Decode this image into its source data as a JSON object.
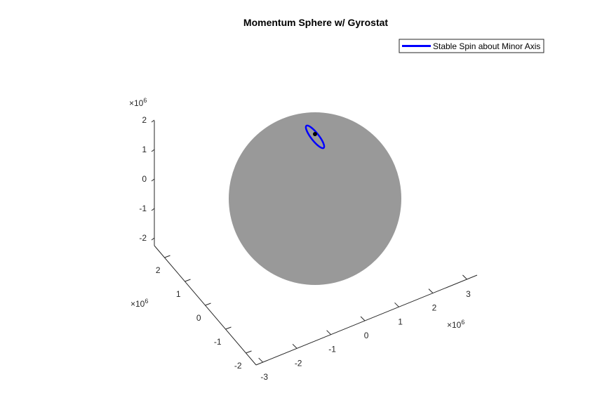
{
  "chart_data": {
    "type": "scatter",
    "title": "Momentum Sphere w/ Gyrostat",
    "grid": false,
    "legend_position": "top-right",
    "series": [
      {
        "name": "Stable Spin about Minor Axis",
        "color": "#0000ff",
        "description_points": "closed loop near sphere top"
      }
    ],
    "sphere_color": "#999999",
    "marker_color": "#000000",
    "x_axis": {
      "ticks": [
        "-3",
        "-2",
        "-1",
        "0",
        "1",
        "2",
        "3"
      ],
      "exponent": "×10",
      "exponent_power": "6",
      "lim": [
        -3,
        3
      ]
    },
    "y_axis": {
      "ticks": [
        "-2",
        "-1",
        "0",
        "1",
        "2"
      ],
      "exponent": "×10",
      "exponent_power": "6",
      "lim": [
        -2.5,
        2.5
      ]
    },
    "z_axis": {
      "ticks": [
        "-2",
        "-1",
        "0",
        "1",
        "2"
      ],
      "exponent": "×10",
      "exponent_power": "6",
      "lim": [
        -2.5,
        2.5
      ]
    }
  }
}
